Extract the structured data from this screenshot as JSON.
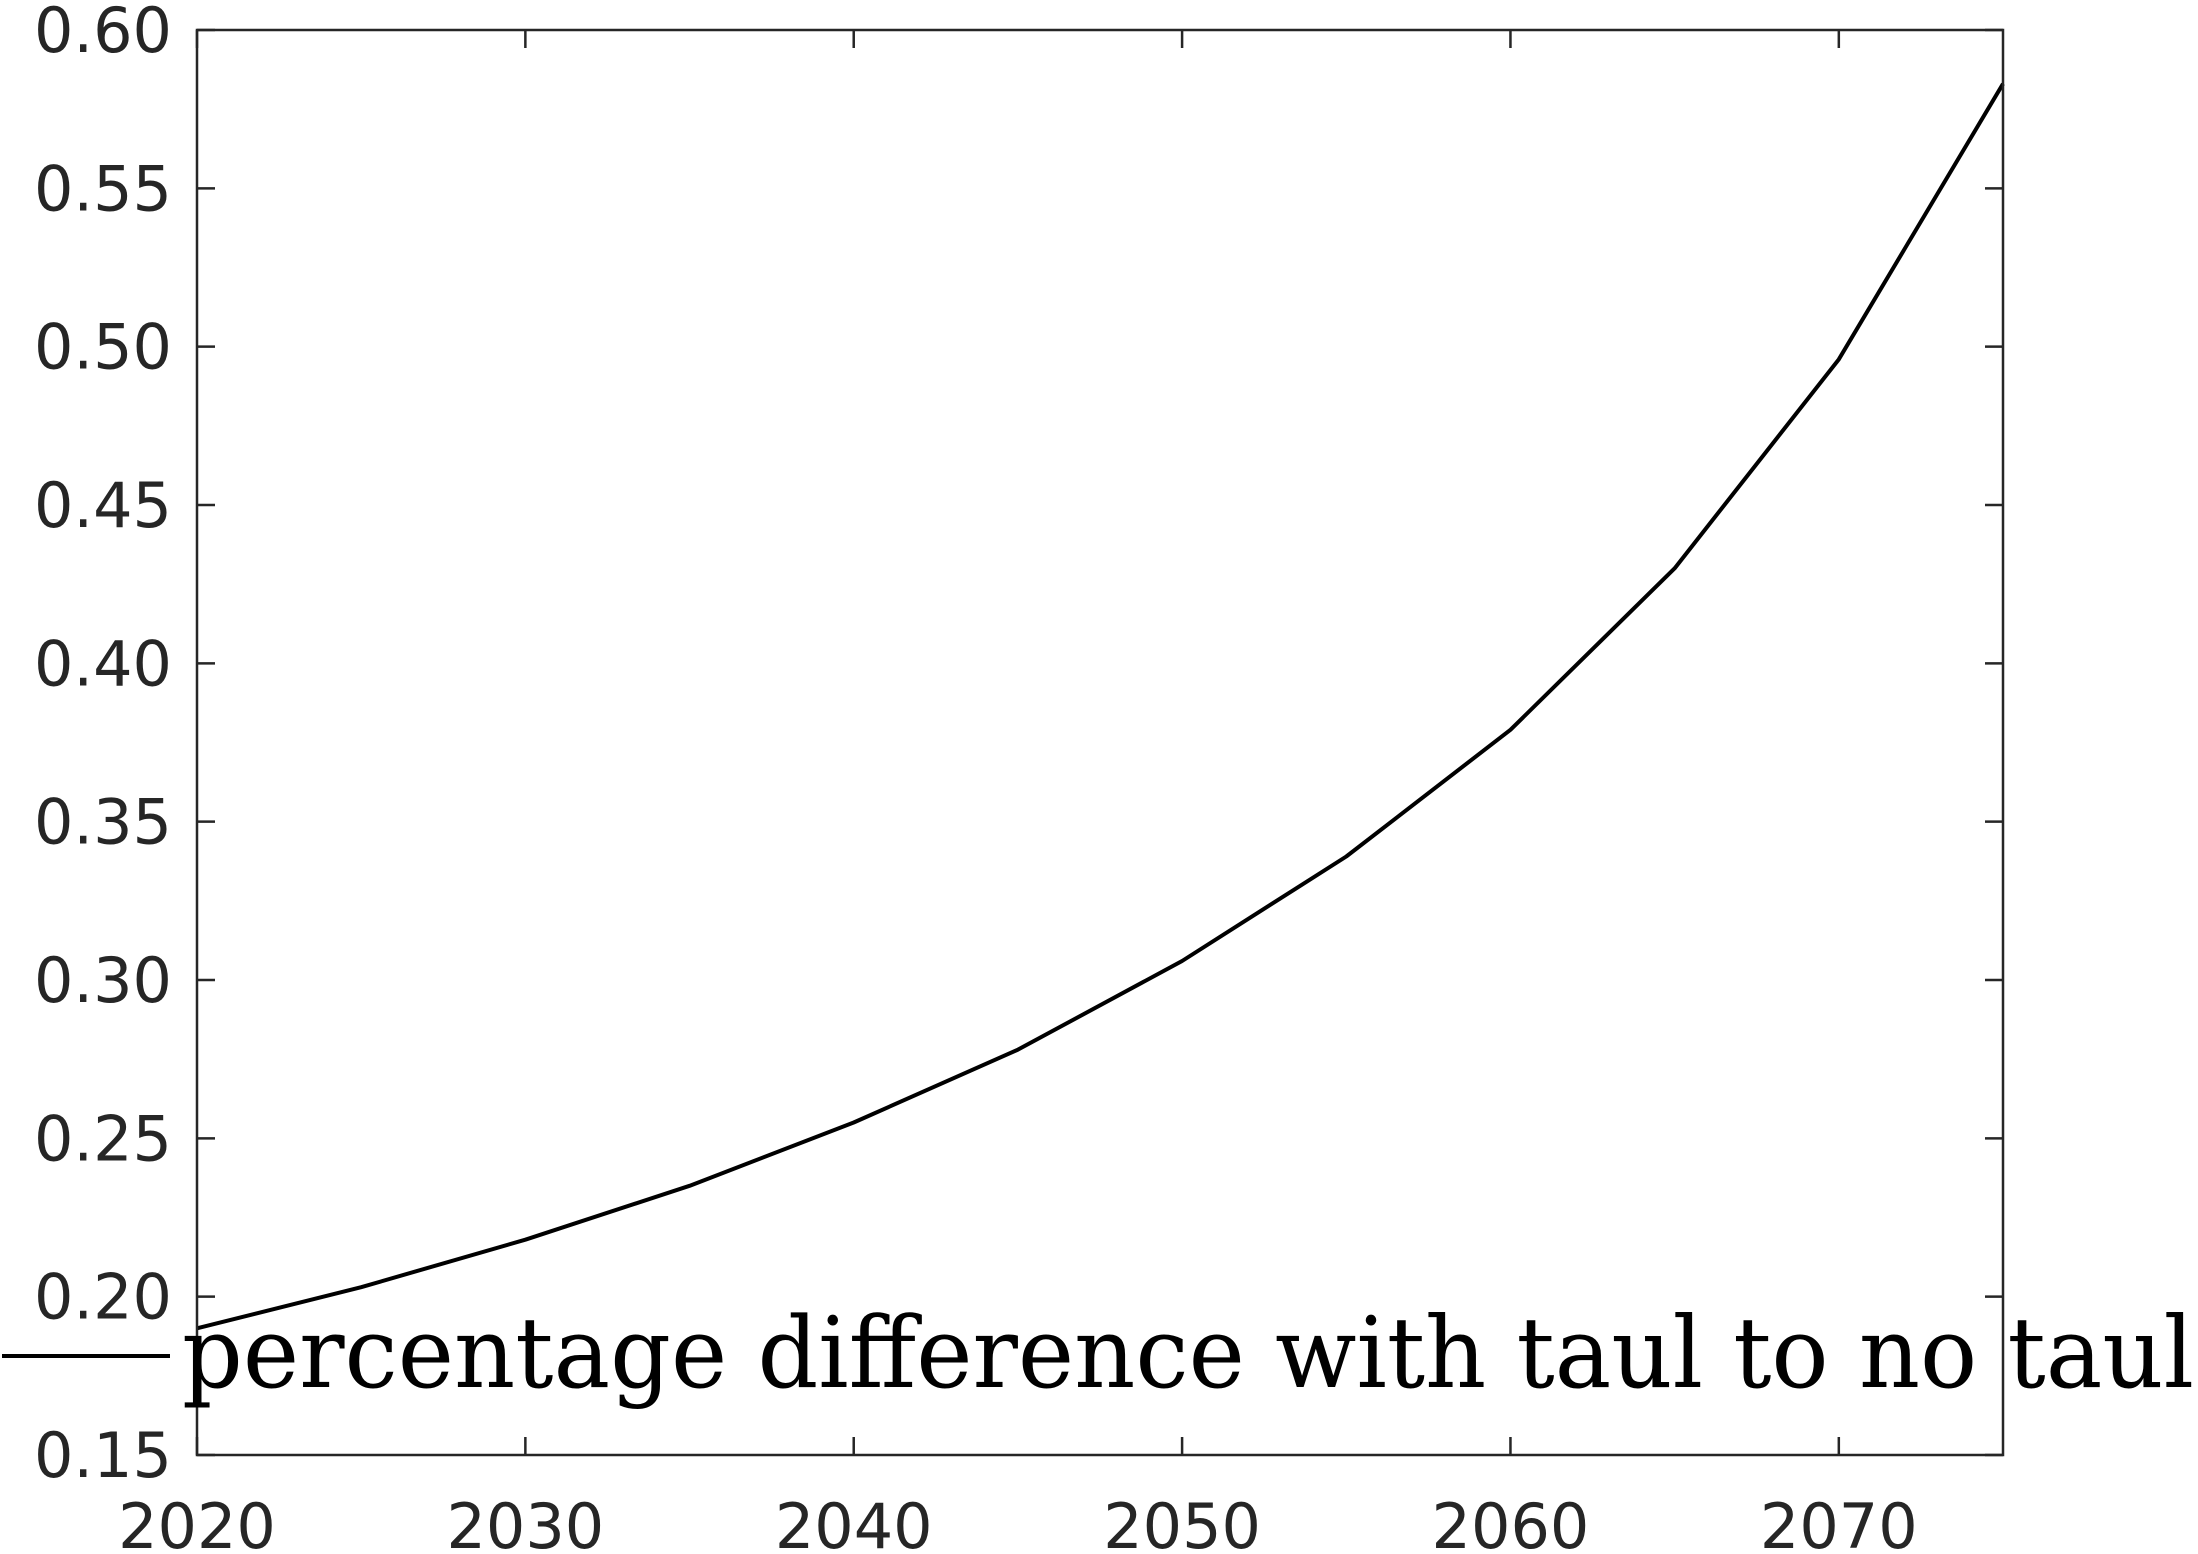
{
  "chart_data": {
    "type": "line",
    "x": [
      2020,
      2025,
      2030,
      2035,
      2040,
      2045,
      2050,
      2055,
      2060,
      2065,
      2070,
      2075
    ],
    "series": [
      {
        "name": "percentage difference with taul to no taul",
        "values": [
          0.19,
          0.203,
          0.218,
          0.235,
          0.255,
          0.278,
          0.306,
          0.339,
          0.379,
          0.43,
          0.496,
          0.583
        ],
        "color": "#000000"
      }
    ],
    "xlim": [
      2020,
      2075
    ],
    "ylim": [
      0.15,
      0.6
    ],
    "xticks": [
      "2020",
      "2030",
      "2040",
      "2050",
      "2060",
      "2070"
    ],
    "yticks": [
      "0.15",
      "0.20",
      "0.25",
      "0.30",
      "0.35",
      "0.40",
      "0.45",
      "0.50",
      "0.55",
      "0.60"
    ],
    "grid": false,
    "legend_position": "bottom-left",
    "title": "",
    "xlabel": "",
    "ylabel": ""
  }
}
